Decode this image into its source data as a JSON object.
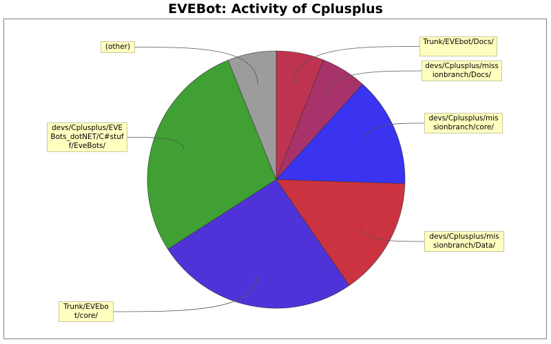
{
  "chart_data": {
    "type": "pie",
    "title": "EVEBot: Activity of Cplusplus",
    "slices": [
      {
        "label": "Trunk/EVEbot/Docs/",
        "value": 6.0,
        "color": "#be3350"
      },
      {
        "label": "devs/Cplusplus/missionbranch/Docs/",
        "value": 5.7,
        "color": "#a8336a"
      },
      {
        "label": "devs/Cplusplus/missionbranch/core/",
        "value": 13.8,
        "color": "#3a33ef"
      },
      {
        "label": "devs/Cplusplus/missionbranch/Data/",
        "value": 14.9,
        "color": "#cc3340"
      },
      {
        "label": "Trunk/EVEbot/core/",
        "value": 25.5,
        "color": "#5033d8"
      },
      {
        "label": "devs/Cplusplus/EVEBots_dotNET/C#stuff/EveBots/",
        "value": 28.0,
        "color": "#40a033"
      },
      {
        "label": "(other)",
        "value": 6.1,
        "color": "#9c9c9c"
      }
    ],
    "start_angle": "12 o'clock",
    "direction": "clockwise",
    "legend": "none"
  }
}
